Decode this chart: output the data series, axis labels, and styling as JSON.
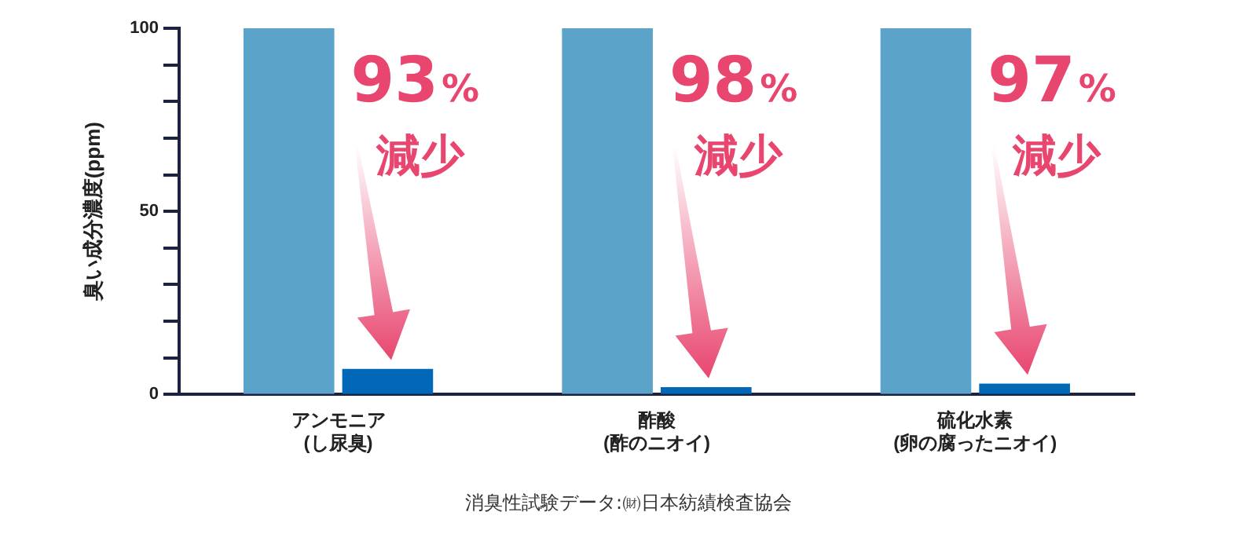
{
  "chart_data": {
    "type": "bar",
    "ylabel": "臭い成分濃度(ppm)",
    "categories": [
      "アンモニア\n(し尿臭)",
      "酢酸\n(酢のニオイ)",
      "硫化水素\n(卵の腐ったニオイ)"
    ],
    "series": [
      {
        "color": "#5ba3c9",
        "values": [
          100,
          100,
          100
        ]
      },
      {
        "color": "#0068b7",
        "values": [
          7,
          2,
          3
        ]
      }
    ],
    "ylim": [
      0,
      100
    ],
    "yticks": [
      0,
      {
        "value": 10,
        "label": null
      },
      {
        "value": 20,
        "label": null
      },
      {
        "value": 30,
        "label": null
      },
      {
        "value": 40,
        "label": null
      },
      50,
      {
        "value": 60,
        "label": null
      },
      {
        "value": 70,
        "label": null
      },
      {
        "value": 80,
        "label": null
      },
      {
        "value": 90,
        "label": null
      },
      100
    ],
    "grid": false,
    "legend": false,
    "annotations": [
      "93%\n減少",
      "98%\n減少",
      "97%\n減少",
      "消臭性試験データ:㈶日本紡績検査協会"
    ]
  }
}
